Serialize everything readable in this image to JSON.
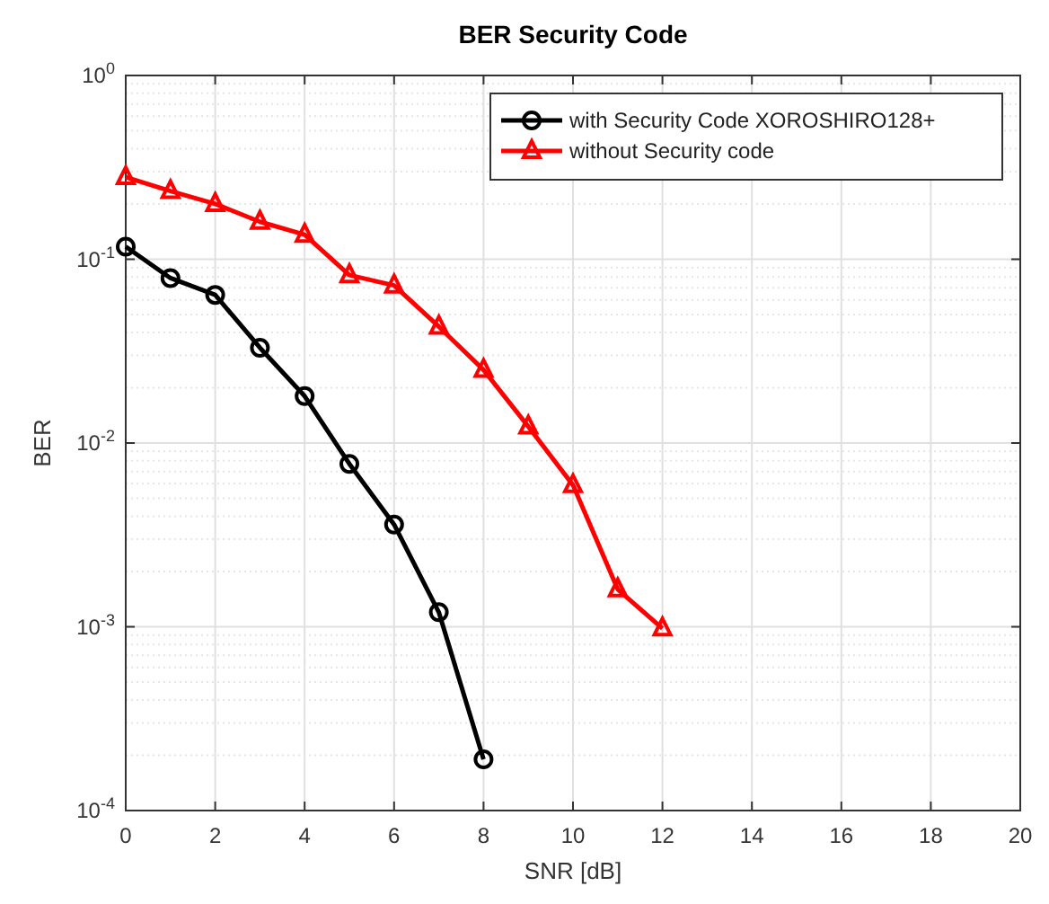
{
  "chart_data": {
    "type": "line",
    "title": "BER  Security Code",
    "xlabel": "SNR [dB]",
    "ylabel": "BER",
    "log": "y",
    "grid": true,
    "legend": "top right",
    "line_style": "solid",
    "x": [
      0,
      1,
      2,
      3,
      4,
      5,
      6,
      7,
      8,
      9,
      10,
      11,
      12
    ],
    "xlim": [
      0,
      20
    ],
    "xticks": [
      0,
      2,
      4,
      6,
      8,
      10,
      12,
      14,
      16,
      18,
      20
    ],
    "ylim": [
      0.0001,
      1
    ],
    "yticks": [
      {
        "value": 0.0001,
        "label": "10$^{-4}$"
      },
      {
        "value": 0.001,
        "label": "10$^{-3}$"
      },
      {
        "value": 0.01,
        "label": "10$^{-2}$"
      },
      {
        "value": 0.1,
        "label": "10$^{-1}$"
      },
      {
        "value": 1,
        "label": "10$^{0}$"
      }
    ],
    "series": [
      {
        "name": "with Security Code XOROSHIRO128+",
        "color": "#000000",
        "marker": "circle",
        "values": [
          0.117,
          0.079,
          0.064,
          0.033,
          0.018,
          0.0077,
          0.0036,
          0.0012,
          0.00019,
          null,
          null,
          null,
          null
        ]
      },
      {
        "name": "without Security code",
        "color": "#ff0000",
        "marker": "triangle",
        "values": [
          0.28,
          0.235,
          0.2,
          0.16,
          0.136,
          0.082,
          0.072,
          0.043,
          0.025,
          0.0123,
          0.0059,
          0.0016,
          0.00098
        ]
      }
    ]
  }
}
